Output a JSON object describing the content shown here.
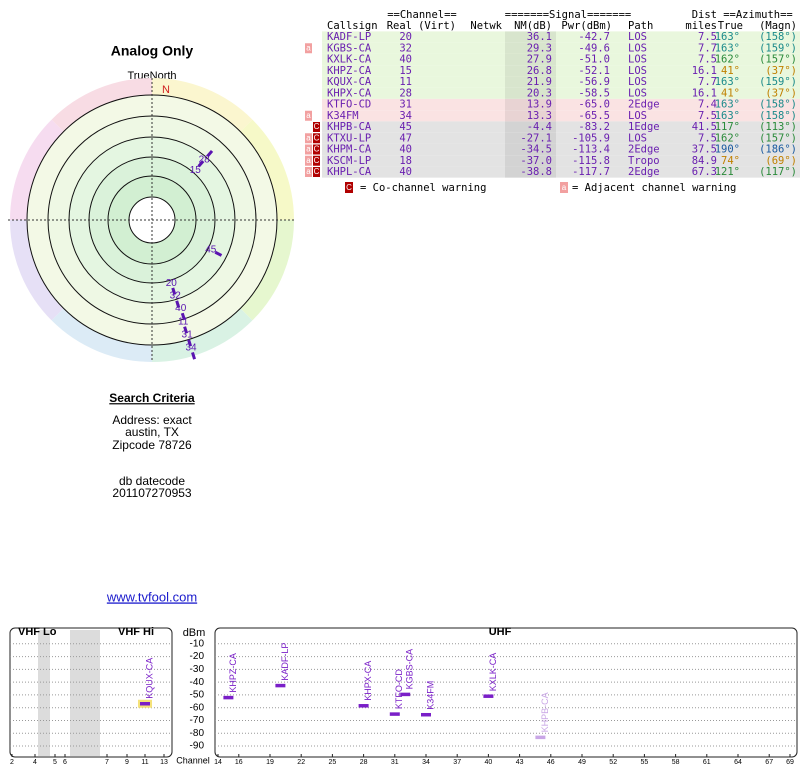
{
  "left": {
    "title": "Analog Only",
    "north_label": "TrueNorth",
    "north": "N",
    "polar": [
      {
        "label": "20",
        "azimuth": 163
      },
      {
        "label": "32",
        "azimuth": 163
      },
      {
        "label": "40",
        "azimuth": 162
      },
      {
        "label": "11",
        "azimuth": 163
      },
      {
        "label": "31",
        "azimuth": 163
      },
      {
        "label": "34",
        "azimuth": 163
      },
      {
        "label": "15",
        "azimuth": 41
      },
      {
        "label": "28",
        "azimuth": 41
      },
      {
        "label": "45",
        "azimuth": 117
      }
    ],
    "search": {
      "heading": "Search Criteria",
      "lines": [
        "Address: exact",
        "austin, TX",
        "Zipcode 78726"
      ],
      "datecode_label": "db datecode",
      "datecode": "201107270953"
    },
    "link": "www.tvfool.com"
  },
  "table": {
    "group_headers": [
      "==Channel==",
      "=======Signal=======",
      "Dist",
      "==Azimuth=="
    ],
    "headers": [
      "Callsign",
      "Real",
      "(Virt)",
      "Netwk",
      "NM(dB)",
      "Pwr(dBm)",
      "Path",
      "miles",
      "True",
      "(Magn)"
    ],
    "legend": [
      {
        "icon": "a",
        "color": "#f2a0a0",
        "text": "= Adjacent channel warning"
      },
      {
        "icon": "C",
        "color": "#b00000",
        "text": "= Co-channel warning"
      }
    ],
    "rows": [
      {
        "flags": [],
        "bg": "#e9f7dd",
        "az_color": "#1a8a8a",
        "cells": [
          "KADF-LP",
          "20",
          "36.1",
          "-42.7",
          "LOS",
          "7.5",
          "163°",
          "(158°)"
        ]
      },
      {
        "flags": [
          "a"
        ],
        "bg": "#e9f7dd",
        "az_color": "#1a8a8a",
        "cells": [
          "KGBS-CA",
          "32",
          "29.3",
          "-49.6",
          "LOS",
          "7.7",
          "163°",
          "(159°)"
        ]
      },
      {
        "flags": [],
        "bg": "#e9f7dd",
        "az_color": "#2a8a3a",
        "cells": [
          "KXLK-CA",
          "40",
          "27.9",
          "-51.0",
          "LOS",
          "7.5",
          "162°",
          "(157°)"
        ]
      },
      {
        "flags": [],
        "bg": "#e9f7dd",
        "az_color": "#c08000",
        "cells": [
          "KHPZ-CA",
          "15",
          "26.8",
          "-52.1",
          "LOS",
          "16.1",
          "41°",
          "(37°)"
        ]
      },
      {
        "flags": [],
        "bg": "#e9f7dd",
        "az_color": "#1a8a8a",
        "cells": [
          "KQUX-CA",
          "11",
          "21.9",
          "-56.9",
          "LOS",
          "7.7",
          "163°",
          "(159°)"
        ]
      },
      {
        "flags": [],
        "bg": "#e9f7dd",
        "az_color": "#c08000",
        "cells": [
          "KHPX-CA",
          "28",
          "20.3",
          "-58.5",
          "LOS",
          "16.1",
          "41°",
          "(37°)"
        ]
      },
      {
        "flags": [],
        "bg": "#fae3e3",
        "az_color": "#1a8a8a",
        "cells": [
          "KTFO-CD",
          "31",
          "13.9",
          "-65.0",
          "2Edge",
          "7.4",
          "163°",
          "(158°)"
        ]
      },
      {
        "flags": [
          "a"
        ],
        "bg": "#fae3e3",
        "az_color": "#1a8a8a",
        "cells": [
          "K34FM",
          "34",
          "13.3",
          "-65.5",
          "LOS",
          "7.5",
          "163°",
          "(158°)"
        ]
      },
      {
        "flags": [
          "C"
        ],
        "bg": "#e3e3e3",
        "az_color": "#2a8a3a",
        "cells": [
          "KHPB-CA",
          "45",
          "-4.4",
          "-83.2",
          "1Edge",
          "41.5",
          "117°",
          "(113°)"
        ]
      },
      {
        "flags": [
          "a",
          "C"
        ],
        "bg": "#e3e3e3",
        "az_color": "#2a8a3a",
        "cells": [
          "KTXU-LP",
          "47",
          "-27.1",
          "-105.9",
          "LOS",
          "7.5",
          "162°",
          "(157°)"
        ]
      },
      {
        "flags": [
          "a",
          "C"
        ],
        "bg": "#e3e3e3",
        "az_color": "#1a5aa0",
        "cells": [
          "KHPM-CA",
          "40",
          "-34.5",
          "-113.4",
          "2Edge",
          "37.5",
          "190°",
          "(186°)"
        ]
      },
      {
        "flags": [
          "a",
          "C"
        ],
        "bg": "#e3e3e3",
        "az_color": "#c08000",
        "cells": [
          "KSCM-LP",
          "18",
          "-37.0",
          "-115.8",
          "Tropo",
          "84.9",
          "74°",
          "(69°)"
        ]
      },
      {
        "flags": [
          "a",
          "C"
        ],
        "bg": "#e3e3e3",
        "az_color": "#2a8a3a",
        "cells": [
          "KHPL-CA",
          "40",
          "-38.8",
          "-117.7",
          "2Edge",
          "67.3",
          "121°",
          "(117°)"
        ]
      }
    ]
  },
  "chart_data": [
    {
      "type": "scatter",
      "titles": [
        "VHF Lo",
        "VHF Hi"
      ],
      "xlim": [
        2,
        13
      ],
      "xticks": [
        2,
        4,
        5,
        6,
        7,
        9,
        11,
        13
      ],
      "points": [
        {
          "label": "KQUX-CA",
          "x": 11,
          "y": -56.9,
          "color": "#7a1fc8"
        }
      ]
    },
    {
      "type": "scatter",
      "titles": [
        "UHF"
      ],
      "y_label": "dBm",
      "x_label": "Channel",
      "xlim": [
        14,
        69
      ],
      "ylim": [
        -97,
        0
      ],
      "yticks": [
        -10,
        -20,
        -30,
        -40,
        -50,
        -60,
        -70,
        -80,
        -90
      ],
      "xticks": [
        14,
        16,
        19,
        22,
        25,
        28,
        31,
        34,
        37,
        40,
        43,
        46,
        49,
        52,
        55,
        58,
        61,
        64,
        67,
        69
      ],
      "points": [
        {
          "label": "KHPZ-CA",
          "x": 15,
          "y": -52.1,
          "color": "#7a1fc8"
        },
        {
          "label": "KADF-LP",
          "x": 20,
          "y": -42.7,
          "color": "#7a1fc8"
        },
        {
          "label": "KHPX-CA",
          "x": 28,
          "y": -58.5,
          "color": "#7a1fc8"
        },
        {
          "label": "KTFO-CD",
          "x": 31,
          "y": -65.0,
          "color": "#7a1fc8"
        },
        {
          "label": "KGBS-CA",
          "x": 32,
          "y": -49.6,
          "color": "#7a1fc8"
        },
        {
          "label": "K34FM",
          "x": 34,
          "y": -65.5,
          "color": "#7a1fc8"
        },
        {
          "label": "KXLK-CA",
          "x": 40,
          "y": -51.0,
          "color": "#7a1fc8"
        },
        {
          "label": "KHPB-CA",
          "x": 45,
          "y": -83.2,
          "color": "#c9a6e6"
        }
      ]
    }
  ]
}
